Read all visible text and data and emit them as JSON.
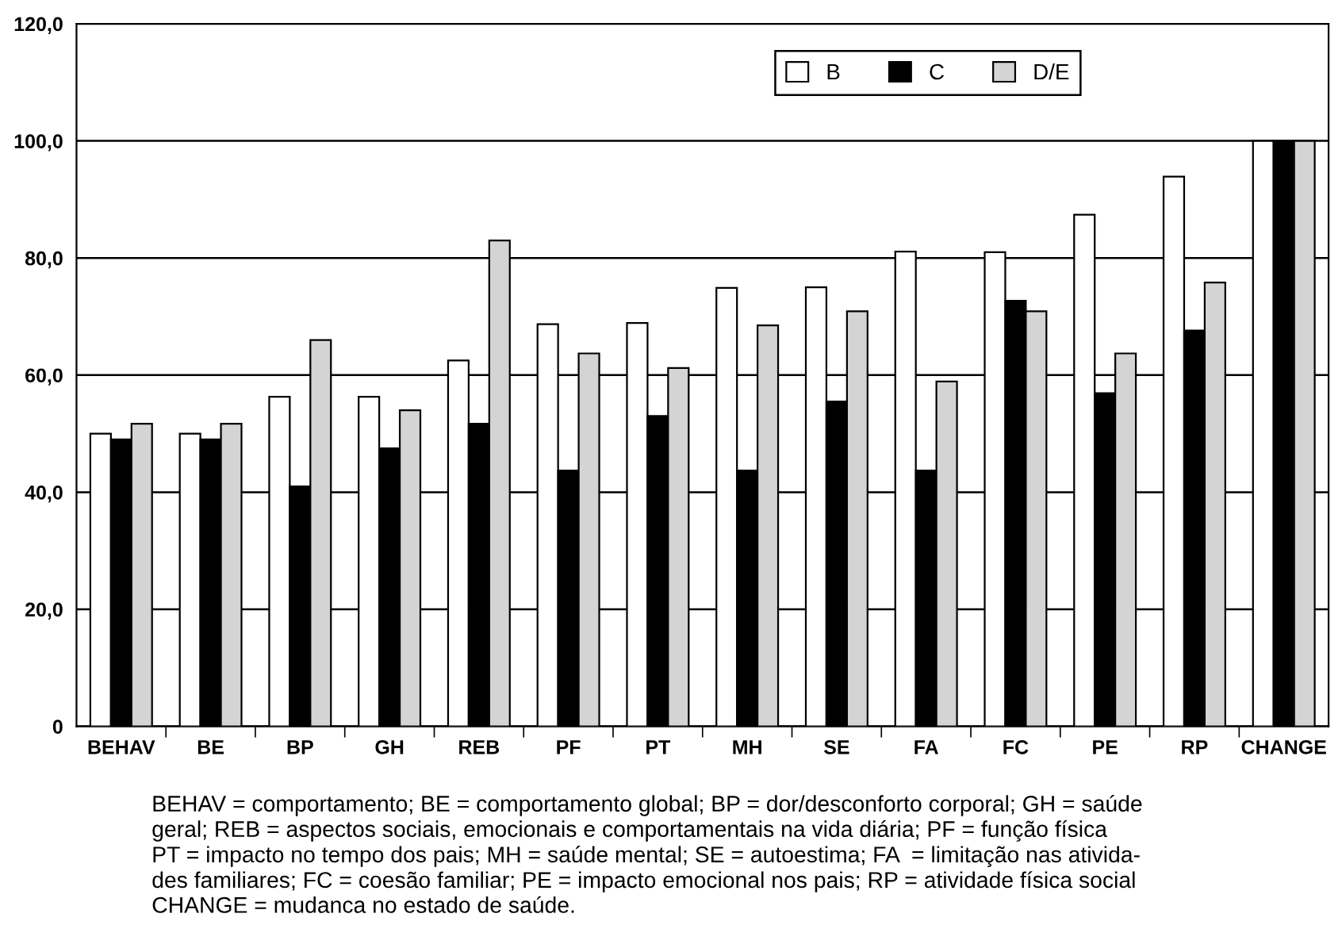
{
  "chart_data": {
    "type": "bar",
    "categories": [
      "BEHAV",
      "BE",
      "BP",
      "GH",
      "REB",
      "PF",
      "PT",
      "MH",
      "SE",
      "FA",
      "FC",
      "PE",
      "RP",
      "CHANGE"
    ],
    "series": [
      {
        "name": "B",
        "color": "#ffffff",
        "values": [
          50.0,
          50.0,
          56.3,
          56.3,
          62.5,
          68.7,
          68.9,
          74.9,
          75.0,
          81.1,
          81.0,
          87.4,
          93.9,
          100.0
        ]
      },
      {
        "name": "C",
        "color": "#000000",
        "values": [
          49.0,
          49.0,
          41.0,
          47.5,
          51.7,
          43.7,
          53.0,
          43.7,
          55.5,
          43.7,
          72.7,
          56.9,
          67.6,
          100.0
        ]
      },
      {
        "name": "D/E",
        "color": "#d4d4d4",
        "values": [
          51.7,
          51.7,
          66.0,
          54.0,
          83.0,
          63.7,
          61.2,
          68.5,
          70.9,
          58.9,
          70.9,
          63.7,
          75.8,
          100.0
        ]
      }
    ],
    "ylim": [
      0,
      120
    ],
    "yticks": [
      0,
      {
        "value": 20,
        "label": "20,0"
      },
      {
        "value": 40,
        "label": "40,0"
      },
      {
        "value": 60,
        "label": "60,0"
      },
      {
        "value": 80,
        "label": "80,0"
      },
      {
        "value": 100,
        "label": "100,0"
      },
      {
        "value": 120,
        "label": "120,0"
      }
    ],
    "grid": "y",
    "legend": "top right",
    "annotations": [
      "BEHAV = comportamento; BE = comportamento global; BP = dor/desconforto corporal; GH = saúde\ngeral; REB = aspectos sociais, emocionais e comportamentais na vida diária; PF = função física\nPT = impacto no tempo dos pais; MH = saúde mental; SE = autoestima; FA  = limitação nas ativida-\ndes familiares; FC = coesão familiar; PE = impacto emocional nos pais; RP = atividade física social\nCHANGE = mudanca no estado de saúde."
    ]
  }
}
